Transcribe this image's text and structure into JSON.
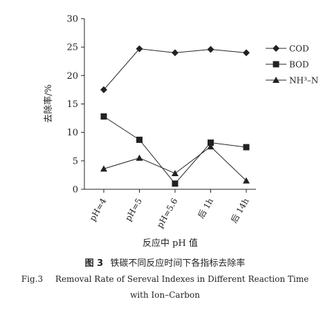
{
  "chart_data": {
    "type": "line",
    "categories": [
      "pH=4",
      "pH=5",
      "pH=5.6",
      "后 1h",
      "后 14h"
    ],
    "series": [
      {
        "name": "COD",
        "marker": "diamond",
        "values": [
          17.5,
          24.7,
          24.0,
          24.6,
          24.0
        ]
      },
      {
        "name": "BOD",
        "marker": "square",
        "values": [
          12.8,
          8.7,
          1.0,
          8.2,
          7.4
        ]
      },
      {
        "name": "NH³–N",
        "marker": "triangle",
        "values": [
          3.6,
          5.5,
          2.8,
          7.5,
          1.5
        ]
      }
    ],
    "ylabel": "去除率/%",
    "xlabel": "反应中 pH 值",
    "ylim": [
      0,
      30
    ],
    "yticks": [
      0,
      5,
      10,
      15,
      20,
      25,
      30
    ],
    "grid": false,
    "legend": "right"
  },
  "caption": {
    "fig_cn": "图 3",
    "title_cn": "铁碳不同反应时间下各指标去除率",
    "fig_en": "Fig.3",
    "title_en_line1": "Removal Rate of Sereval Indexes in Different Reaction Time",
    "title_en_line2": "with Ion–Carbon"
  },
  "colors": {
    "ink": "#222222"
  }
}
